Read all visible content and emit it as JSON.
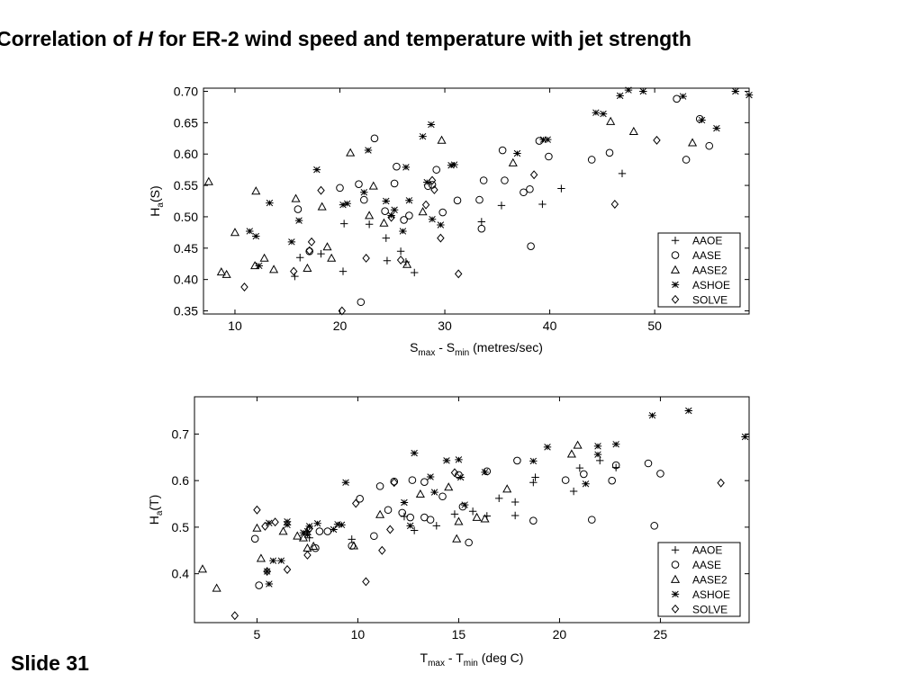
{
  "slide": {
    "title_prefix": "Correlation of ",
    "title_var": "H",
    "title_suffix": " for ER-2 wind speed and temperature with jet strength",
    "number_label": "Slide 31"
  },
  "legend": [
    "AAOE",
    "AASE",
    "AASE2",
    "ASHOE",
    "SOLVE"
  ],
  "chart_data": [
    {
      "type": "scatter",
      "xlabel": {
        "main": "S",
        "sub1": "max",
        "mid": " - S",
        "sub2": "min",
        "tail": "  (metres/sec)"
      },
      "ylabel": {
        "main": "H",
        "sub": "a",
        "tail": "(S)"
      },
      "xlim": [
        7,
        59
      ],
      "ylim": [
        0.345,
        0.705
      ],
      "xticks": [
        10,
        20,
        30,
        40,
        50
      ],
      "yticks": [
        0.35,
        0.4,
        0.45,
        0.5,
        0.55,
        0.6,
        0.65,
        0.7
      ],
      "ytick_labels": [
        "0.35",
        "0.40",
        "0.45",
        "0.50",
        "0.55",
        "0.60",
        "0.65",
        "0.70"
      ],
      "legend_position": "bottom-right",
      "series": [
        {
          "name": "AAOE",
          "marker": "plus",
          "points": [
            [
              15.7,
              0.405
            ],
            [
              16.2,
              0.435
            ],
            [
              18.2,
              0.441
            ],
            [
              20.3,
              0.413
            ],
            [
              20.4,
              0.489
            ],
            [
              22.8,
              0.488
            ],
            [
              24.4,
              0.466
            ],
            [
              24.5,
              0.43
            ],
            [
              25.8,
              0.445
            ],
            [
              26.3,
              0.428
            ],
            [
              27.1,
              0.411
            ],
            [
              33.5,
              0.492
            ],
            [
              35.4,
              0.518
            ],
            [
              39.3,
              0.52
            ],
            [
              41.1,
              0.545
            ],
            [
              46.9,
              0.569
            ]
          ]
        },
        {
          "name": "AASE",
          "marker": "circle",
          "points": [
            [
              16.0,
              0.512
            ],
            [
              17.1,
              0.445
            ],
            [
              20.0,
              0.546
            ],
            [
              21.8,
              0.552
            ],
            [
              22.0,
              0.364
            ],
            [
              22.3,
              0.527
            ],
            [
              23.3,
              0.625
            ],
            [
              24.3,
              0.509
            ],
            [
              25.2,
              0.553
            ],
            [
              25.4,
              0.58
            ],
            [
              26.1,
              0.495
            ],
            [
              26.6,
              0.502
            ],
            [
              28.4,
              0.549
            ],
            [
              28.8,
              0.551
            ],
            [
              29.2,
              0.575
            ],
            [
              29.8,
              0.507
            ],
            [
              31.2,
              0.526
            ],
            [
              33.3,
              0.527
            ],
            [
              33.5,
              0.481
            ],
            [
              33.7,
              0.558
            ],
            [
              35.5,
              0.606
            ],
            [
              35.7,
              0.558
            ],
            [
              37.5,
              0.539
            ],
            [
              38.1,
              0.544
            ],
            [
              38.2,
              0.453
            ],
            [
              39.0,
              0.621
            ],
            [
              39.9,
              0.596
            ],
            [
              44.0,
              0.591
            ],
            [
              45.7,
              0.602
            ],
            [
              52.1,
              0.688
            ],
            [
              53.0,
              0.591
            ],
            [
              54.3,
              0.656
            ],
            [
              55.2,
              0.613
            ]
          ]
        },
        {
          "name": "AASE2",
          "marker": "triangle",
          "points": [
            [
              7.5,
              0.556
            ],
            [
              8.7,
              0.412
            ],
            [
              9.2,
              0.408
            ],
            [
              10.0,
              0.475
            ],
            [
              11.9,
              0.422
            ],
            [
              12.0,
              0.541
            ],
            [
              12.8,
              0.434
            ],
            [
              13.7,
              0.416
            ],
            [
              15.8,
              0.529
            ],
            [
              16.9,
              0.418
            ],
            [
              18.3,
              0.516
            ],
            [
              18.8,
              0.452
            ],
            [
              19.2,
              0.434
            ],
            [
              21.0,
              0.602
            ],
            [
              22.8,
              0.502
            ],
            [
              23.2,
              0.549
            ],
            [
              24.2,
              0.49
            ],
            [
              26.4,
              0.424
            ],
            [
              27.9,
              0.508
            ],
            [
              29.7,
              0.622
            ],
            [
              36.5,
              0.586
            ],
            [
              45.8,
              0.652
            ],
            [
              48.0,
              0.636
            ],
            [
              53.6,
              0.618
            ]
          ]
        },
        {
          "name": "ASHOE",
          "marker": "asterisk",
          "points": [
            [
              11.4,
              0.477
            ],
            [
              12.0,
              0.469
            ],
            [
              12.3,
              0.422
            ],
            [
              13.3,
              0.522
            ],
            [
              15.4,
              0.46
            ],
            [
              16.1,
              0.494
            ],
            [
              17.8,
              0.575
            ],
            [
              20.3,
              0.519
            ],
            [
              20.7,
              0.521
            ],
            [
              22.3,
              0.539
            ],
            [
              22.7,
              0.606
            ],
            [
              24.4,
              0.525
            ],
            [
              24.9,
              0.502
            ],
            [
              25.2,
              0.511
            ],
            [
              26.0,
              0.477
            ],
            [
              26.3,
              0.579
            ],
            [
              26.6,
              0.526
            ],
            [
              27.9,
              0.628
            ],
            [
              28.3,
              0.555
            ],
            [
              28.7,
              0.647
            ],
            [
              28.8,
              0.496
            ],
            [
              29.6,
              0.487
            ],
            [
              30.6,
              0.582
            ],
            [
              30.9,
              0.583
            ],
            [
              36.9,
              0.601
            ],
            [
              39.4,
              0.623
            ],
            [
              39.8,
              0.623
            ],
            [
              44.4,
              0.666
            ],
            [
              45.1,
              0.664
            ],
            [
              46.7,
              0.693
            ],
            [
              47.5,
              0.702
            ],
            [
              48.9,
              0.7
            ],
            [
              52.7,
              0.692
            ],
            [
              54.5,
              0.654
            ],
            [
              55.9,
              0.641
            ],
            [
              57.7,
              0.7
            ],
            [
              59.0,
              0.694
            ]
          ]
        },
        {
          "name": "SOLVE",
          "marker": "diamond",
          "points": [
            [
              10.9,
              0.388
            ],
            [
              15.6,
              0.413
            ],
            [
              17.1,
              0.446
            ],
            [
              17.3,
              0.46
            ],
            [
              18.2,
              0.542
            ],
            [
              20.2,
              0.35
            ],
            [
              22.5,
              0.434
            ],
            [
              24.9,
              0.499
            ],
            [
              25.8,
              0.431
            ],
            [
              28.2,
              0.519
            ],
            [
              28.8,
              0.558
            ],
            [
              29.0,
              0.543
            ],
            [
              29.6,
              0.466
            ],
            [
              31.3,
              0.409
            ],
            [
              38.5,
              0.567
            ],
            [
              46.2,
              0.52
            ],
            [
              50.2,
              0.622
            ]
          ]
        }
      ]
    },
    {
      "type": "scatter",
      "xlabel": {
        "main": "T",
        "sub1": "max",
        "mid": " - T",
        "sub2": "min",
        "tail": "  (deg C)"
      },
      "ylabel": {
        "main": "H",
        "sub": "a",
        "tail": "(T)"
      },
      "xlim": [
        1.9,
        29.4
      ],
      "ylim": [
        0.295,
        0.78
      ],
      "xticks": [
        5,
        10,
        15,
        20,
        25
      ],
      "yticks": [
        0.4,
        0.5,
        0.6,
        0.7
      ],
      "ytick_labels": [
        "0.4",
        "0.5",
        "0.6",
        "0.7"
      ],
      "legend_position": "bottom-right",
      "series": [
        {
          "name": "AAOE",
          "marker": "plus",
          "points": [
            [
              7.6,
              0.477
            ],
            [
              9.7,
              0.474
            ],
            [
              12.3,
              0.523
            ],
            [
              12.8,
              0.493
            ],
            [
              13.9,
              0.503
            ],
            [
              14.8,
              0.528
            ],
            [
              15.7,
              0.534
            ],
            [
              16.4,
              0.524
            ],
            [
              17.0,
              0.562
            ],
            [
              17.8,
              0.554
            ],
            [
              17.8,
              0.525
            ],
            [
              18.7,
              0.596
            ],
            [
              18.8,
              0.607
            ],
            [
              20.7,
              0.577
            ],
            [
              21.0,
              0.627
            ],
            [
              22.0,
              0.643
            ],
            [
              22.8,
              0.628
            ]
          ]
        },
        {
          "name": "AASE",
          "marker": "circle",
          "points": [
            [
              4.9,
              0.475
            ],
            [
              5.1,
              0.375
            ],
            [
              7.9,
              0.455
            ],
            [
              8.1,
              0.491
            ],
            [
              8.5,
              0.491
            ],
            [
              9.7,
              0.46
            ],
            [
              10.1,
              0.561
            ],
            [
              10.8,
              0.481
            ],
            [
              11.1,
              0.588
            ],
            [
              11.5,
              0.537
            ],
            [
              11.8,
              0.598
            ],
            [
              12.2,
              0.531
            ],
            [
              12.6,
              0.521
            ],
            [
              12.7,
              0.601
            ],
            [
              13.3,
              0.597
            ],
            [
              13.3,
              0.521
            ],
            [
              13.6,
              0.516
            ],
            [
              14.2,
              0.566
            ],
            [
              15.0,
              0.612
            ],
            [
              15.2,
              0.544
            ],
            [
              15.5,
              0.467
            ],
            [
              16.4,
              0.62
            ],
            [
              17.9,
              0.643
            ],
            [
              18.7,
              0.514
            ],
            [
              20.3,
              0.601
            ],
            [
              21.2,
              0.614
            ],
            [
              21.6,
              0.516
            ],
            [
              22.6,
              0.6
            ],
            [
              22.8,
              0.633
            ],
            [
              24.4,
              0.637
            ],
            [
              24.7,
              0.503
            ],
            [
              25.0,
              0.615
            ]
          ]
        },
        {
          "name": "AASE2",
          "marker": "triangle",
          "points": [
            [
              2.3,
              0.41
            ],
            [
              3.0,
              0.369
            ],
            [
              5.0,
              0.498
            ],
            [
              5.2,
              0.433
            ],
            [
              6.3,
              0.491
            ],
            [
              7.0,
              0.481
            ],
            [
              7.3,
              0.477
            ],
            [
              7.5,
              0.455
            ],
            [
              7.8,
              0.459
            ],
            [
              9.8,
              0.46
            ],
            [
              11.1,
              0.527
            ],
            [
              13.1,
              0.571
            ],
            [
              14.5,
              0.586
            ],
            [
              14.9,
              0.475
            ],
            [
              15.0,
              0.512
            ],
            [
              15.9,
              0.521
            ],
            [
              16.3,
              0.518
            ],
            [
              17.4,
              0.582
            ],
            [
              20.6,
              0.657
            ],
            [
              20.9,
              0.676
            ]
          ]
        },
        {
          "name": "ASHOE",
          "marker": "asterisk",
          "points": [
            [
              5.5,
              0.405
            ],
            [
              5.6,
              0.378
            ],
            [
              5.6,
              0.509
            ],
            [
              5.8,
              0.428
            ],
            [
              6.2,
              0.428
            ],
            [
              6.5,
              0.512
            ],
            [
              6.5,
              0.505
            ],
            [
              7.3,
              0.488
            ],
            [
              7.5,
              0.491
            ],
            [
              7.5,
              0.484
            ],
            [
              7.6,
              0.502
            ],
            [
              8.0,
              0.508
            ],
            [
              8.8,
              0.495
            ],
            [
              9.0,
              0.506
            ],
            [
              9.2,
              0.505
            ],
            [
              9.4,
              0.596
            ],
            [
              12.3,
              0.553
            ],
            [
              12.6,
              0.503
            ],
            [
              12.8,
              0.659
            ],
            [
              13.6,
              0.608
            ],
            [
              13.8,
              0.575
            ],
            [
              14.4,
              0.643
            ],
            [
              15.0,
              0.645
            ],
            [
              15.1,
              0.607
            ],
            [
              15.3,
              0.548
            ],
            [
              16.3,
              0.618
            ],
            [
              18.7,
              0.642
            ],
            [
              19.4,
              0.672
            ],
            [
              21.3,
              0.593
            ],
            [
              21.9,
              0.674
            ],
            [
              21.9,
              0.656
            ],
            [
              22.8,
              0.678
            ],
            [
              24.6,
              0.74
            ],
            [
              26.4,
              0.75
            ],
            [
              29.2,
              0.694
            ]
          ]
        },
        {
          "name": "SOLVE",
          "marker": "diamond",
          "points": [
            [
              3.9,
              0.31
            ],
            [
              5.0,
              0.537
            ],
            [
              5.4,
              0.502
            ],
            [
              5.5,
              0.405
            ],
            [
              5.9,
              0.511
            ],
            [
              6.5,
              0.409
            ],
            [
              7.5,
              0.44
            ],
            [
              7.6,
              0.497
            ],
            [
              9.9,
              0.551
            ],
            [
              10.4,
              0.383
            ],
            [
              11.2,
              0.45
            ],
            [
              11.6,
              0.495
            ],
            [
              11.8,
              0.596
            ],
            [
              14.8,
              0.617
            ],
            [
              28.0,
              0.595
            ]
          ]
        }
      ]
    }
  ]
}
